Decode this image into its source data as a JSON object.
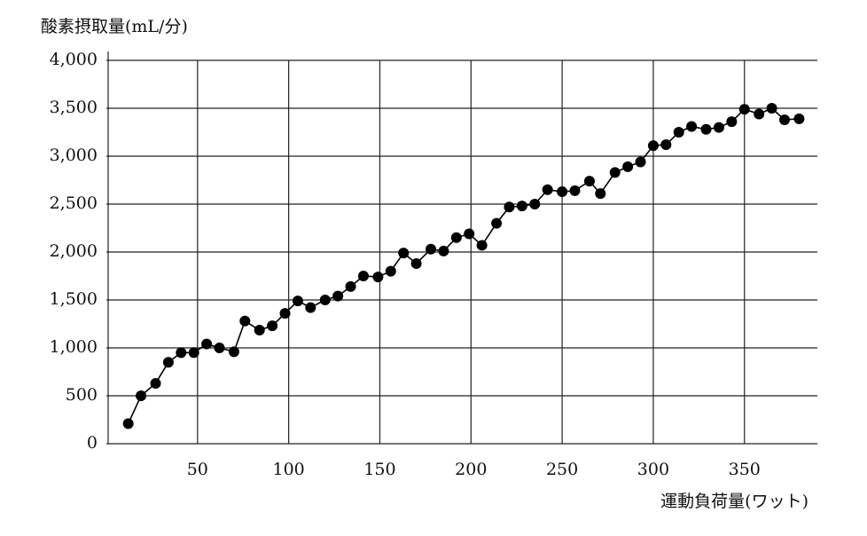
{
  "chart_data": {
    "type": "line",
    "y_label": "酸素摂取量(mL/分)",
    "x_label": "運動負荷量(ワット)",
    "color": "#000000",
    "grid": true,
    "xlim": [
      0,
      390
    ],
    "xticks": [
      50,
      100,
      150,
      200,
      250,
      300,
      350
    ],
    "ylim": [
      0,
      4000
    ],
    "yticks": [
      0,
      500,
      {
        "value": 1000,
        "label": "1,000"
      },
      {
        "value": 1500,
        "label": "1,500"
      },
      {
        "value": 2000,
        "label": "2,000"
      },
      {
        "value": 2500,
        "label": "2,500"
      },
      {
        "value": 3000,
        "label": "3,000"
      },
      {
        "value": 3500,
        "label": "3,500"
      },
      {
        "value": 4000,
        "label": "4,000"
      }
    ],
    "x": [
      12,
      19,
      27,
      34,
      41,
      48,
      55,
      62,
      70,
      76,
      84,
      91,
      98,
      105,
      112,
      120,
      127,
      134,
      141,
      149,
      156,
      163,
      170,
      178,
      185,
      192,
      199,
      206,
      214,
      221,
      228,
      235,
      242,
      250,
      257,
      265,
      271,
      279,
      286,
      293,
      300,
      307,
      314,
      321,
      329,
      336,
      343,
      350,
      358,
      365,
      372,
      380
    ],
    "values": [
      210,
      500,
      630,
      850,
      950,
      950,
      1040,
      1000,
      960,
      1280,
      1185,
      1230,
      1360,
      1490,
      1420,
      1500,
      1540,
      1640,
      1750,
      1740,
      1800,
      1990,
      1880,
      2030,
      2010,
      2150,
      2190,
      2070,
      2300,
      2470,
      2480,
      2500,
      2650,
      2630,
      2640,
      2740,
      2610,
      2830,
      2890,
      2940,
      3110,
      3120,
      3250,
      3310,
      3280,
      3300,
      3360,
      3490,
      3440,
      3500,
      3380,
      3390
    ]
  }
}
